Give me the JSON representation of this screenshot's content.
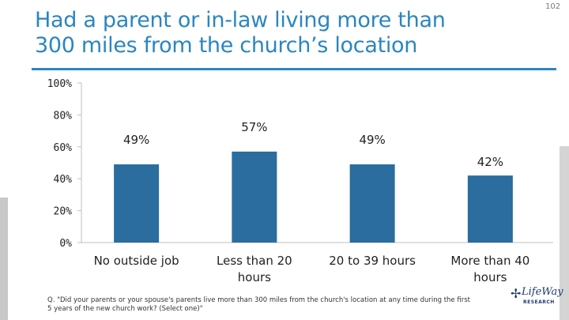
{
  "slide": {
    "title": "Had a parent or in-law living more than\n300 miles from the church’s location",
    "page_number": "102",
    "footnote": "Q. \"Did your parents or your spouse's parents live more than 300 miles from the church's location at any time during the first 5 years of the new church work? (Select one)\"",
    "logo": {
      "main": "LifeWay",
      "sub": "RESEARCH"
    }
  },
  "colors": {
    "title": "#2a86c0",
    "bar": "#2a6d9e",
    "axis": "#bfbfbf"
  },
  "chart_data": {
    "type": "bar",
    "categories": [
      "No outside job",
      "Less than 20 hours",
      "20 to 39 hours",
      "More than 40 hours"
    ],
    "category_lines": [
      [
        "No outside job"
      ],
      [
        "Less than 20",
        "hours"
      ],
      [
        "20 to 39 hours"
      ],
      [
        "More than 40",
        "hours"
      ]
    ],
    "values": [
      49,
      57,
      49,
      42
    ],
    "value_labels": [
      "49%",
      "57%",
      "49%",
      "42%"
    ],
    "ylim": [
      0,
      100
    ],
    "yticks": [
      0,
      20,
      40,
      60,
      80,
      100
    ],
    "ytick_labels": [
      "0%",
      "20%",
      "40%",
      "60%",
      "80%",
      "100%"
    ],
    "grid": false,
    "legend": "none"
  }
}
